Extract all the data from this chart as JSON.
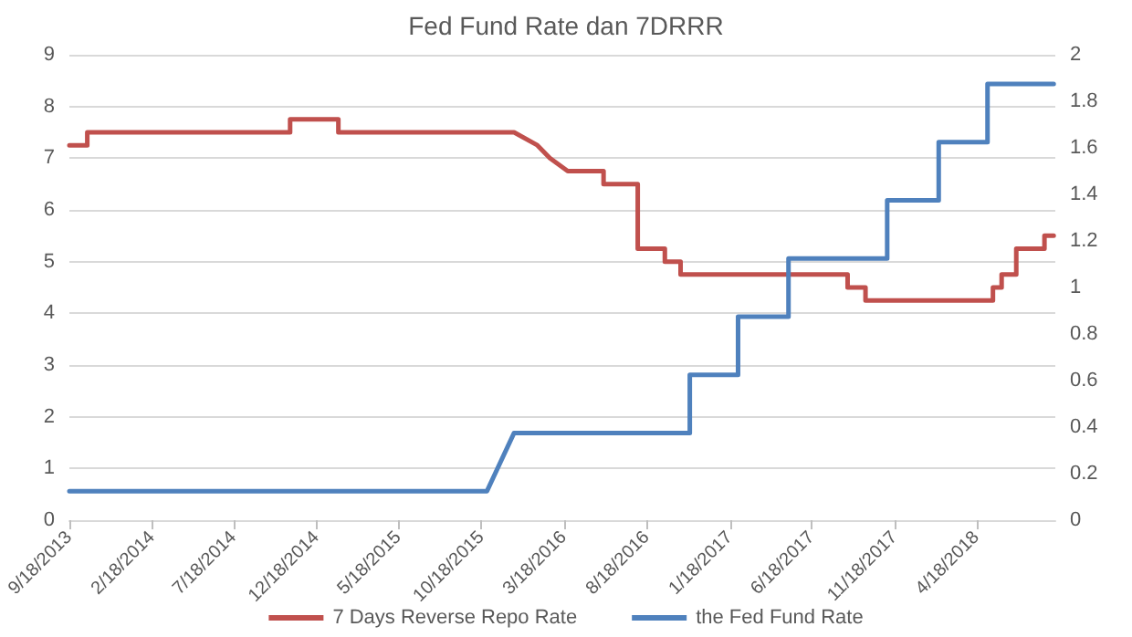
{
  "chart_data": {
    "type": "line",
    "title": "Fed Fund Rate dan 7DRRR",
    "xlim": [
      "2013-09-18",
      "2018-09-10"
    ],
    "xticks": [
      {
        "value": "2013-09-18",
        "label": "9/18/2013"
      },
      {
        "value": "2014-02-18",
        "label": "2/18/2014"
      },
      {
        "value": "2014-07-18",
        "label": "7/18/2014"
      },
      {
        "value": "2014-12-18",
        "label": "12/18/2014"
      },
      {
        "value": "2015-05-18",
        "label": "5/18/2015"
      },
      {
        "value": "2015-10-18",
        "label": "10/18/2015"
      },
      {
        "value": "2016-03-18",
        "label": "3/18/2016"
      },
      {
        "value": "2016-08-18",
        "label": "8/18/2016"
      },
      {
        "value": "2017-01-18",
        "label": "1/18/2017"
      },
      {
        "value": "2017-06-18",
        "label": "6/18/2017"
      },
      {
        "value": "2017-11-18",
        "label": "11/18/2017"
      },
      {
        "value": "2018-04-18",
        "label": "4/18/2018"
      }
    ],
    "ylim": [
      0,
      9
    ],
    "yticks": [
      0,
      1,
      2,
      3,
      4,
      5,
      6,
      7,
      8,
      9
    ],
    "y2lim": [
      0,
      2
    ],
    "y2ticks": [
      0,
      0.2,
      0.4,
      0.6,
      0.8,
      1,
      1.2,
      1.4,
      1.6,
      1.8,
      2
    ],
    "grid": "y",
    "legend": "bottom",
    "marker": "none",
    "line_style": "solid",
    "series": [
      {
        "name": "7 Days Reverse Repo Rate",
        "color": "#c0504d",
        "x": [
          "2013-09-18",
          "2013-10-21",
          "2013-10-21",
          "2014-10-30",
          "2014-10-30",
          "2015-01-27",
          "2015-01-27",
          "2015-12-17",
          "2016-01-29",
          "2016-02-21",
          "2016-03-25",
          "2016-05-30",
          "2016-05-30",
          "2016-08-01",
          "2016-08-01",
          "2016-09-20",
          "2016-09-20",
          "2016-10-19",
          "2016-10-19",
          "2017-08-23",
          "2017-08-23",
          "2017-09-25",
          "2017-09-25",
          "2018-05-18",
          "2018-05-18",
          "2018-06-03",
          "2018-06-03",
          "2018-06-30",
          "2018-06-30",
          "2018-08-21",
          "2018-08-21",
          "2018-09-07"
        ],
        "values": [
          7.25,
          7.25,
          7.5,
          7.5,
          7.75,
          7.75,
          7.5,
          7.5,
          7.25,
          7,
          6.75,
          6.75,
          6.5,
          6.5,
          5.25,
          5.25,
          5,
          5,
          4.75,
          4.75,
          4.5,
          4.5,
          4.25,
          4.25,
          4.5,
          4.5,
          4.75,
          4.75,
          5.25,
          5.25,
          5.5,
          5.5
        ]
      },
      {
        "name": "the Fed Fund Rate",
        "color": "#4f81bd",
        "axis": "y2",
        "x": [
          "2013-09-18",
          "2015-10-28",
          "2015-12-17",
          "2016-11-05",
          "2016-11-05",
          "2017-02-02",
          "2017-02-02",
          "2017-05-06",
          "2017-05-06",
          "2017-11-04",
          "2017-11-04",
          "2018-02-07",
          "2018-02-07",
          "2018-05-08",
          "2018-05-08",
          "2018-09-07"
        ],
        "values": [
          0.125,
          0.125,
          0.375,
          0.375,
          0.625,
          0.625,
          0.875,
          0.875,
          1.125,
          1.125,
          1.375,
          1.375,
          1.625,
          1.625,
          1.875,
          1.875
        ]
      }
    ]
  }
}
